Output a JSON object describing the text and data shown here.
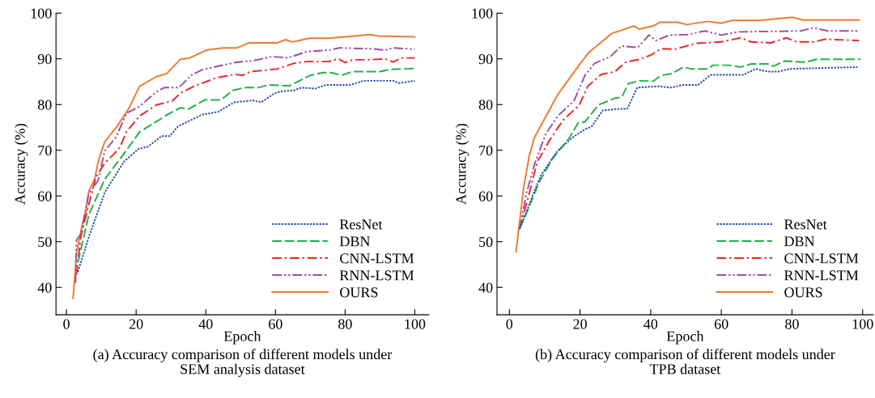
{
  "chart_data": [
    {
      "type": "line",
      "title": "(a) Accuracy comparison of different models under\nSEM analysis dataset",
      "xlabel": "Epoch",
      "ylabel": "Accuracy (%)",
      "xlim": [
        -3,
        104
      ],
      "ylim": [
        34,
        100
      ],
      "xticks": [
        0,
        20,
        40,
        60,
        80,
        100
      ],
      "yticks": [
        40,
        50,
        60,
        70,
        80,
        90,
        100
      ],
      "grid": false,
      "legend": "bottom right",
      "marker": "none",
      "series": [
        {
          "name": "ResNet",
          "color": "#2b4ea8",
          "line_style": "dotted",
          "x": [
            3.3,
            6.4,
            11,
            16.5,
            20.7,
            23.4,
            27.3,
            29.6,
            32,
            38.9,
            43.5,
            48.2,
            53.6,
            55.9,
            59.8,
            62,
            65.2,
            67.5,
            71.4,
            74.5,
            81.4,
            85.3,
            93.8,
            95.4,
            100
          ],
          "values": [
            43.4,
            51,
            60.8,
            67.5,
            70.3,
            70.8,
            73.1,
            73.1,
            75.2,
            77.8,
            78.4,
            80.5,
            80.9,
            80.5,
            82.5,
            82.9,
            83.1,
            83.7,
            83.5,
            84.3,
            84.3,
            85.2,
            85.2,
            84.7,
            85.2
          ]
        },
        {
          "name": "DBN",
          "color": "#22b04b",
          "line_style": "dashed",
          "x": [
            3.3,
            6.4,
            11,
            15.3,
            21,
            29,
            32.7,
            35,
            39.7,
            44.3,
            47.8,
            51,
            55,
            58,
            64,
            70,
            73.7,
            76,
            79,
            82,
            90,
            93,
            100
          ],
          "values": [
            45.5,
            55.8,
            63.7,
            68,
            74,
            77.8,
            79.3,
            79,
            81,
            81,
            83.1,
            83.7,
            83.7,
            84.3,
            84.1,
            86.4,
            87,
            87,
            86.4,
            87.2,
            87.2,
            87.7,
            87.9
          ]
        },
        {
          "name": "CNN-LSTM",
          "color": "#e8262a",
          "line_style": "dashdot",
          "x": [
            2.9,
            4.1,
            6.4,
            8.4,
            11,
            13.4,
            15.3,
            17.2,
            21,
            25.8,
            30.4,
            32.7,
            36.6,
            39.7,
            42.8,
            48.2,
            50.5,
            52.8,
            60.6,
            65.2,
            69,
            75.3,
            78,
            80,
            82.2,
            86.9,
            91.5,
            93.8,
            96.1,
            100
          ],
          "values": [
            42.8,
            51,
            58.1,
            64,
            67.2,
            69,
            70.6,
            74,
            77.5,
            79.9,
            80.8,
            82.5,
            84,
            84.9,
            85.8,
            86.6,
            86.4,
            87.2,
            87.8,
            89,
            89.4,
            89.4,
            90,
            89.2,
            89.8,
            89.8,
            90,
            89.3,
            90.2,
            90.2
          ]
        },
        {
          "name": "RNN-LSTM",
          "color": "#9b4fa6",
          "line_style": "dashdotdot",
          "x": [
            2.6,
            2.9,
            4.1,
            6.4,
            8,
            9.1,
            11,
            14.2,
            17.2,
            21,
            25.8,
            28.1,
            32.3,
            35.8,
            38.9,
            43.5,
            48.4,
            53.6,
            59,
            63.6,
            69,
            75.3,
            78.3,
            87.6,
            91.5,
            93.8,
            100
          ],
          "values": [
            41,
            50.4,
            51.6,
            60.5,
            62.2,
            63.4,
            69.9,
            72.8,
            78.1,
            79.6,
            82.8,
            83.7,
            83.7,
            86.4,
            87.6,
            88.4,
            89.2,
            89.6,
            90.5,
            90.2,
            91.6,
            91.9,
            92.4,
            92.2,
            91.9,
            92.4,
            92.1
          ]
        },
        {
          "name": "OURS",
          "color": "#ef7a30",
          "line_style": "solid",
          "x": [
            1.9,
            2.9,
            4.1,
            5.6,
            6.4,
            8.1,
            9.1,
            11,
            14.5,
            18,
            21,
            25.8,
            28.8,
            32.7,
            35.4,
            40,
            45,
            49,
            52.4,
            60.6,
            62.9,
            64.8,
            69.8,
            75.3,
            87.2,
            89.5,
            100
          ],
          "values": [
            37.6,
            47.5,
            52.2,
            56.9,
            61,
            63.7,
            67.5,
            71.9,
            75.2,
            79.3,
            84,
            86.1,
            86.8,
            89.9,
            90.2,
            91.9,
            92.4,
            92.4,
            93.5,
            93.5,
            94.2,
            93.7,
            94.5,
            94.5,
            95.3,
            95,
            94.8
          ]
        }
      ]
    },
    {
      "type": "line",
      "title": "(b) Accuracy comparison of different models under\nTPB dataset",
      "xlabel": "Epoch",
      "ylabel": "Accuracy (%)",
      "xlim": [
        -3.5,
        103
      ],
      "ylim": [
        34,
        100
      ],
      "xticks": [
        0,
        20,
        40,
        60,
        80,
        100
      ],
      "yticks": [
        40,
        50,
        60,
        70,
        80,
        90,
        100
      ],
      "grid": false,
      "legend": "bottom right",
      "marker": "none",
      "series": [
        {
          "name": "ResNet",
          "color": "#2b4ea8",
          "line_style": "dotted",
          "x": [
            2.9,
            4.8,
            7.1,
            9,
            13.7,
            17.9,
            21.4,
            23.3,
            26.4,
            29.9,
            33.4,
            36.2,
            42.2,
            45.7,
            49.2,
            53.4,
            57,
            66.2,
            69.7,
            73.1,
            76.2,
            79.3,
            98.6
          ],
          "values": [
            52.8,
            56.4,
            61.1,
            64.6,
            69.9,
            72.8,
            74.6,
            75.2,
            78.7,
            79,
            79.1,
            83.7,
            84,
            83.7,
            84.3,
            84.3,
            86.5,
            86.5,
            87.8,
            87.2,
            87.2,
            87.8,
            88.2
          ]
        },
        {
          "name": "DBN",
          "color": "#22b04b",
          "line_style": "dashed",
          "x": [
            2.9,
            5.2,
            8.3,
            12.1,
            16.8,
            19.5,
            21.4,
            25.2,
            29.9,
            31.8,
            33.7,
            36.8,
            40.7,
            43,
            46.1,
            49.2,
            51.5,
            56.1,
            57.7,
            62.3,
            65.4,
            68.5,
            73.1,
            74.7,
            77.8,
            83.9,
            87,
            99.4
          ],
          "values": [
            52.8,
            56.9,
            62.8,
            68.1,
            72.5,
            76,
            76.2,
            79.9,
            81.4,
            81.6,
            84.6,
            85.2,
            85.1,
            86.4,
            86.8,
            88.2,
            87.8,
            87.8,
            88.6,
            88.6,
            88.2,
            88.9,
            88.9,
            88.4,
            89.5,
            89.3,
            89.9,
            89.9
          ]
        },
        {
          "name": "CNN-LSTM",
          "color": "#e8262a",
          "line_style": "dashdot",
          "x": [
            2.9,
            5.2,
            7.9,
            11.4,
            15.2,
            19.8,
            22.2,
            26,
            29.9,
            33,
            36.8,
            40,
            43,
            46.9,
            52.9,
            60,
            65.4,
            68.5,
            73.9,
            78.5,
            81.3,
            86.2,
            89.4,
            99
          ],
          "values": [
            52.8,
            59.3,
            67.5,
            72.2,
            76.6,
            79.9,
            84,
            86.6,
            87.2,
            89.3,
            89.9,
            90.8,
            92.2,
            92.1,
            93.4,
            93.7,
            94.6,
            93.7,
            93.5,
            94.6,
            93.7,
            93.7,
            94.3,
            94
          ]
        },
        {
          "name": "RNN-LSTM",
          "color": "#9b4fa6",
          "line_style": "dashdotdot",
          "x": [
            2.9,
            4.8,
            7.1,
            10.2,
            13.7,
            18.3,
            21.4,
            24.1,
            28.6,
            31.7,
            36.4,
            39.5,
            41.5,
            45.3,
            50.3,
            55.4,
            60,
            64.6,
            82.4,
            86.2,
            90.1,
            99
          ],
          "values": [
            52.8,
            60.5,
            66.9,
            73.4,
            77.5,
            80.8,
            86.4,
            89,
            90.5,
            92.8,
            92.5,
            95.2,
            94,
            95.2,
            95.3,
            96.1,
            95.2,
            95.9,
            96.1,
            96.8,
            96.1,
            96.1
          ]
        },
        {
          "name": "OURS",
          "color": "#ef7a30",
          "line_style": "solid",
          "x": [
            1.9,
            4,
            5.6,
            7.1,
            13.7,
            19.8,
            22.5,
            29.1,
            35.3,
            36.8,
            40.7,
            42.6,
            47.6,
            50.3,
            56.1,
            60,
            63.1,
            70.8,
            80.1,
            83.2,
            99
          ],
          "values": [
            47.8,
            61.6,
            68.7,
            72.8,
            82.2,
            88.7,
            91.4,
            95.6,
            97.2,
            96.5,
            97.2,
            98,
            98,
            97.5,
            98.2,
            97.8,
            98.4,
            98.4,
            99.1,
            98.5,
            98.5
          ]
        }
      ]
    }
  ]
}
